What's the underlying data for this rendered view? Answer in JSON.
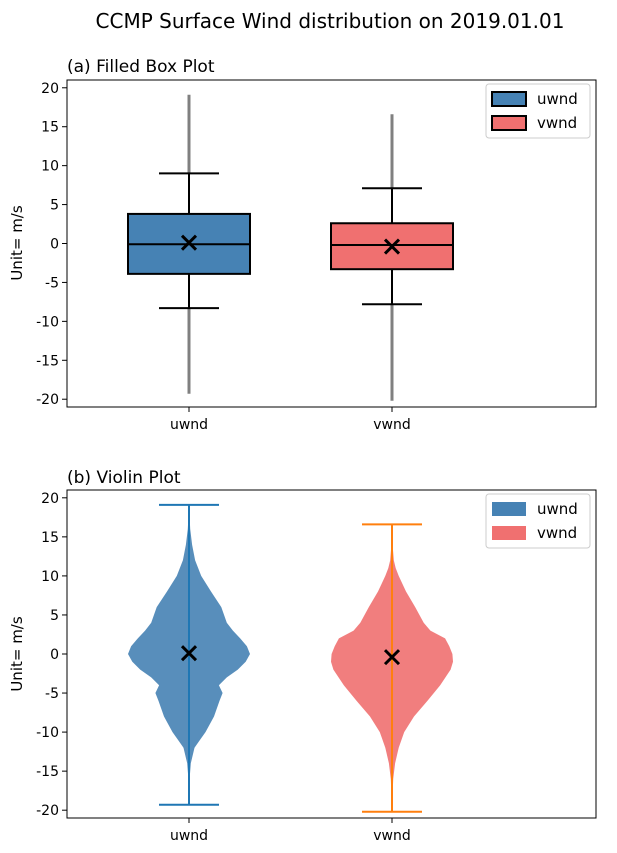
{
  "suptitle": "CCMP Surface Wind distribution on 2019.01.01",
  "colors": {
    "uwnd": "#4682b4",
    "vwnd": "#f07070",
    "uwnd_line": "#1f77b4",
    "vwnd_line": "#ff7f0e",
    "outlier": "#808080"
  },
  "chart_data": [
    {
      "type": "box",
      "title": "(a) Filled Box Plot",
      "xlabel": "",
      "ylabel": "Unit= m/s",
      "ylim": [
        -21,
        21
      ],
      "yticks": [
        -20,
        -15,
        -10,
        -5,
        0,
        5,
        10,
        15,
        20
      ],
      "categories": [
        "uwnd",
        "vwnd"
      ],
      "legend": {
        "placement": "top-right",
        "entries": [
          "uwnd",
          "vwnd"
        ]
      },
      "series": [
        {
          "name": "uwnd",
          "min": -8.3,
          "q1": -3.9,
          "median": -0.1,
          "q3": 3.8,
          "max": 9.0,
          "mean": 0.1,
          "outlier_low": -19.3,
          "outlier_high": 19.1
        },
        {
          "name": "vwnd",
          "min": -7.8,
          "q1": -3.3,
          "median": -0.2,
          "q3": 2.6,
          "max": 7.1,
          "mean": -0.4,
          "outlier_low": -20.2,
          "outlier_high": 16.6
        }
      ]
    },
    {
      "type": "violin",
      "title": "(b) Violin Plot",
      "xlabel": "",
      "ylabel": "Unit= m/s",
      "ylim": [
        -21,
        21
      ],
      "yticks": [
        -20,
        -15,
        -10,
        -5,
        0,
        5,
        10,
        15,
        20
      ],
      "categories": [
        "uwnd",
        "vwnd"
      ],
      "legend": {
        "placement": "top-right",
        "entries": [
          "uwnd",
          "vwnd"
        ]
      },
      "series": [
        {
          "name": "uwnd",
          "min": -19.3,
          "max": 19.1,
          "mean": 0.1,
          "density_profile": [
            [
              -19.3,
              0.0
            ],
            [
              -16,
              0.01
            ],
            [
              -14,
              0.03
            ],
            [
              -12,
              0.09
            ],
            [
              -11,
              0.18
            ],
            [
              -10,
              0.27
            ],
            [
              -8,
              0.41
            ],
            [
              -6,
              0.5
            ],
            [
              -5,
              0.55
            ],
            [
              -4,
              0.49
            ],
            [
              -3,
              0.62
            ],
            [
              -2,
              0.8
            ],
            [
              -1,
              0.93
            ],
            [
              0,
              1.0
            ],
            [
              1,
              0.95
            ],
            [
              2,
              0.84
            ],
            [
              3,
              0.72
            ],
            [
              4,
              0.62
            ],
            [
              6,
              0.53
            ],
            [
              8,
              0.36
            ],
            [
              10,
              0.2
            ],
            [
              12,
              0.1
            ],
            [
              14,
              0.05
            ],
            [
              16,
              0.02
            ],
            [
              19.1,
              0.0
            ]
          ]
        },
        {
          "name": "vwnd",
          "min": -20.2,
          "max": 16.6,
          "mean": -0.4,
          "density_profile": [
            [
              -20.2,
              0.0
            ],
            [
              -16,
              0.02
            ],
            [
              -14,
              0.05
            ],
            [
              -12,
              0.11
            ],
            [
              -10,
              0.2
            ],
            [
              -8,
              0.36
            ],
            [
              -6,
              0.58
            ],
            [
              -4,
              0.79
            ],
            [
              -2,
              0.96
            ],
            [
              -1,
              1.0
            ],
            [
              0,
              0.99
            ],
            [
              1,
              0.94
            ],
            [
              2,
              0.87
            ],
            [
              3,
              0.63
            ],
            [
              4,
              0.52
            ],
            [
              6,
              0.38
            ],
            [
              8,
              0.23
            ],
            [
              10,
              0.11
            ],
            [
              11,
              0.06
            ],
            [
              12,
              0.03
            ],
            [
              14,
              0.01
            ],
            [
              16.6,
              0.0
            ]
          ]
        }
      ]
    }
  ]
}
